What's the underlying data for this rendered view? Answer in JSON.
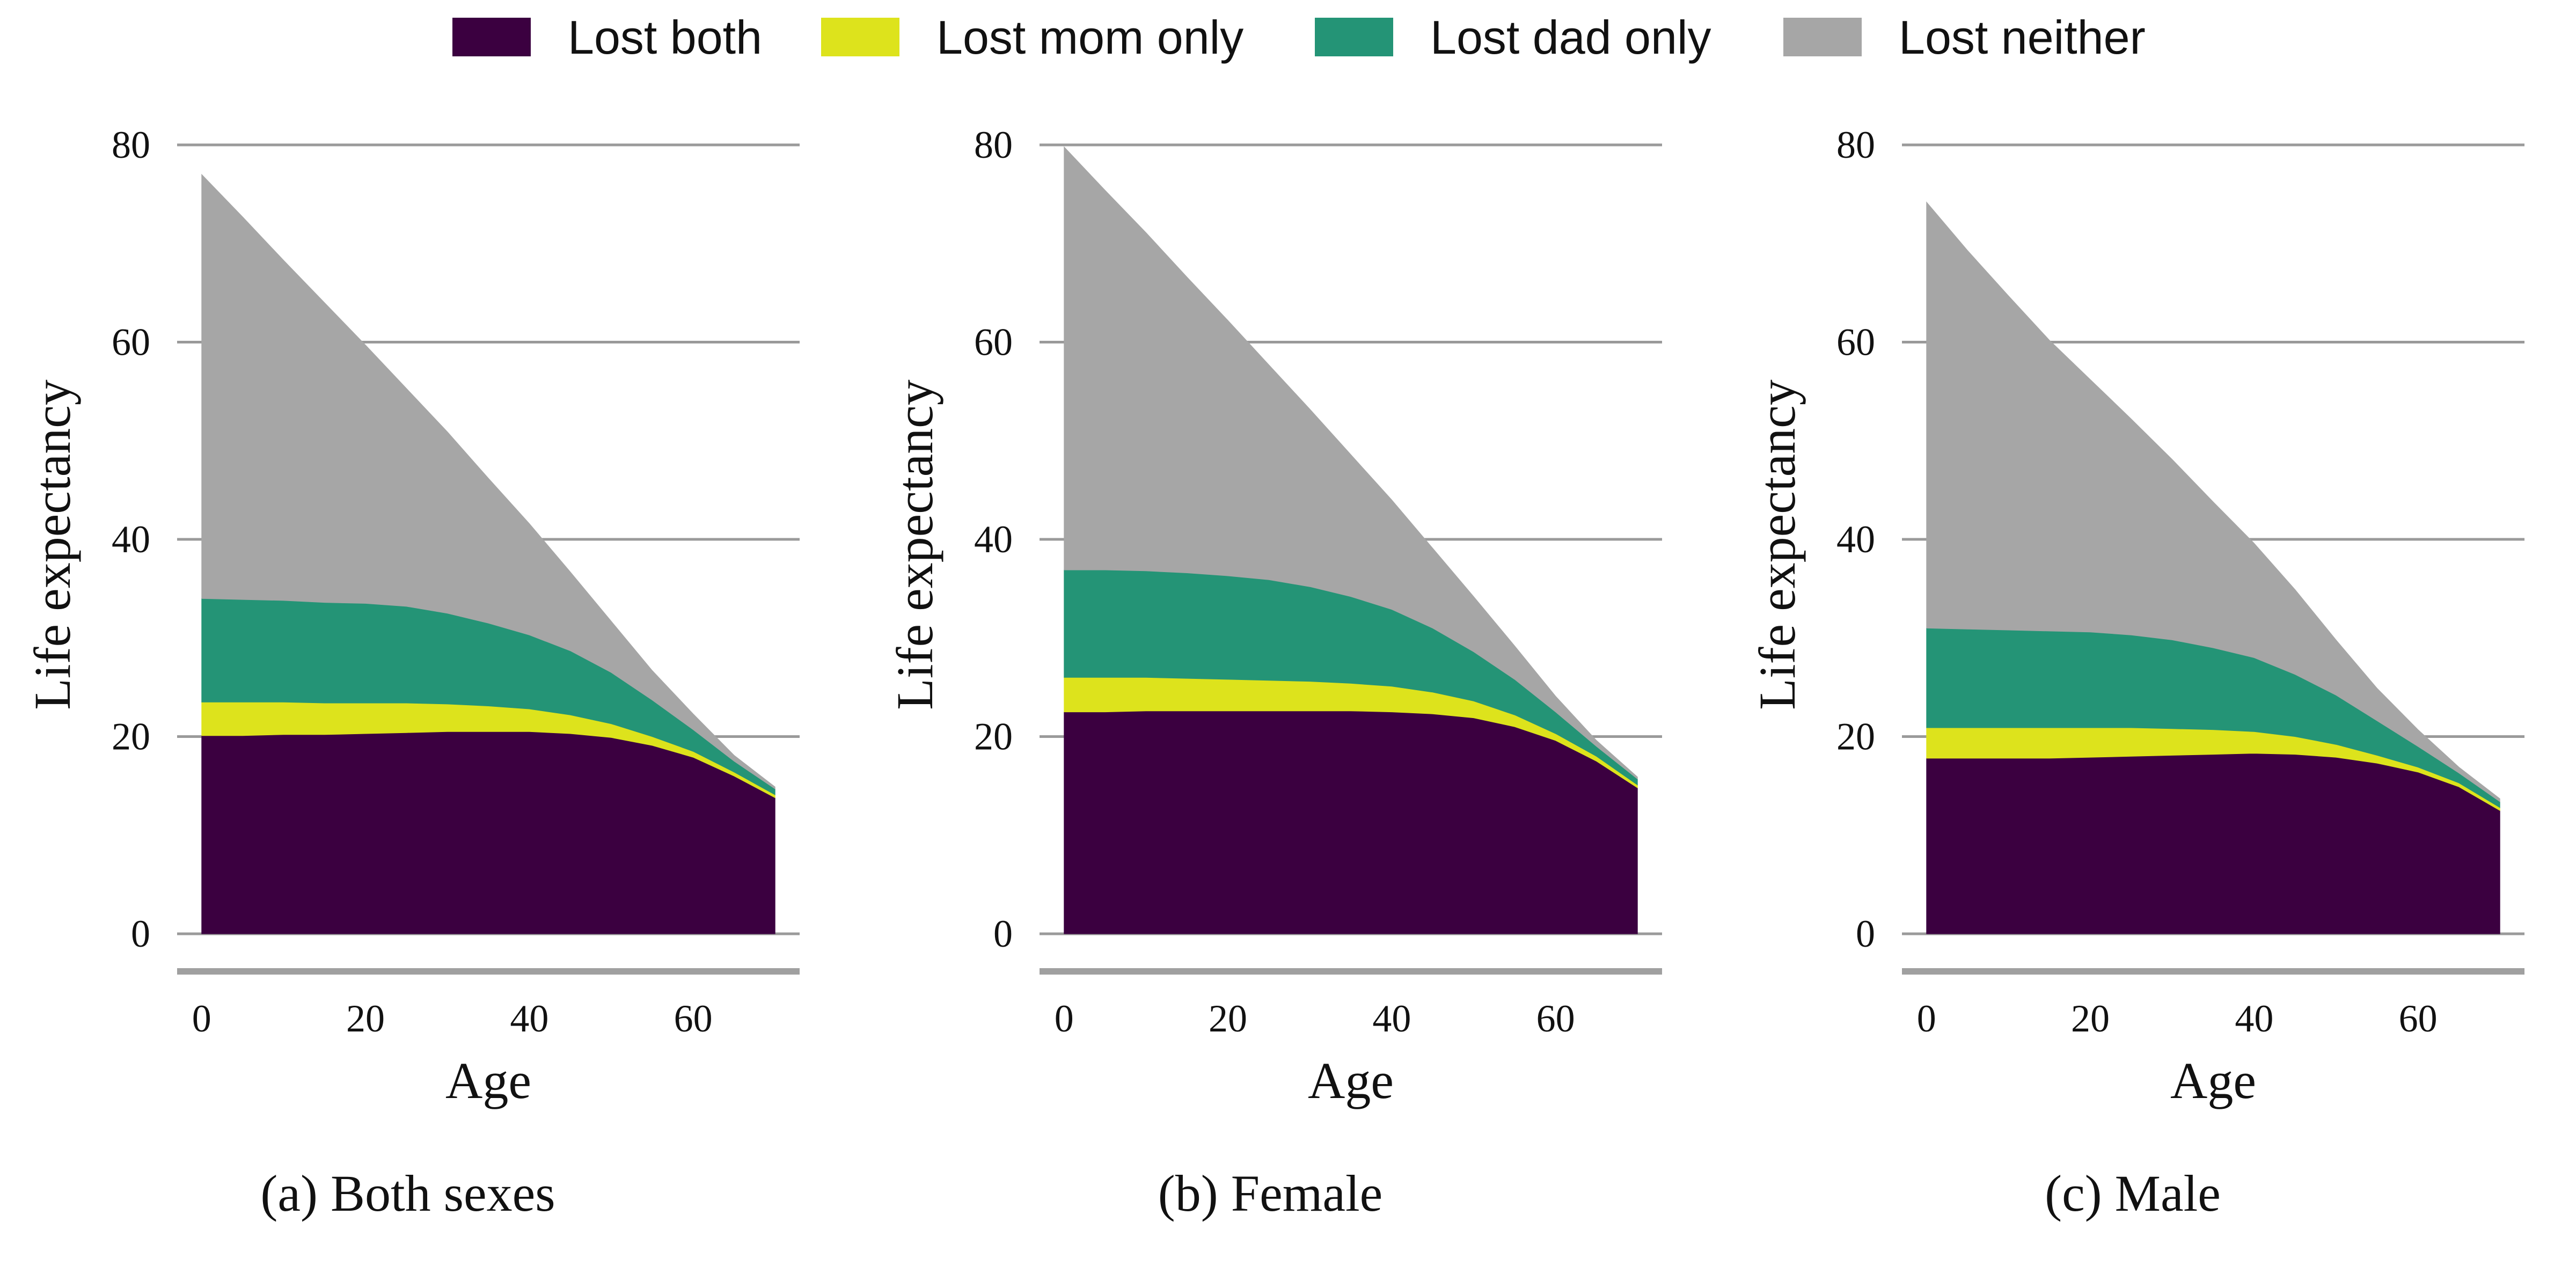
{
  "legend": [
    {
      "label": "Lost both",
      "color": "#3b0040"
    },
    {
      "label": "Lost mom only",
      "color": "#dde31c"
    },
    {
      "label": "Lost dad only",
      "color": "#249476"
    },
    {
      "label": "Lost neither",
      "color": "#a6a6a6"
    }
  ],
  "chart_data": [
    {
      "type": "area",
      "caption": "(a) Both sexes",
      "xlabel": "Age",
      "ylabel": "Life expectancy",
      "xlim": [
        -3,
        73
      ],
      "ylim": [
        0,
        80
      ],
      "xticks": [
        "0",
        "20",
        "40",
        "60"
      ],
      "yticks": [
        "0",
        "20",
        "40",
        "60",
        "80"
      ],
      "grid": true,
      "x": [
        0,
        5,
        10,
        15,
        20,
        25,
        30,
        35,
        40,
        45,
        50,
        55,
        60,
        65,
        70
      ],
      "series": [
        {
          "name": "Lost both",
          "values": [
            20.1,
            20.1,
            20.2,
            20.2,
            20.3,
            20.4,
            20.5,
            20.5,
            20.5,
            20.3,
            19.9,
            19.1,
            17.9,
            16.0,
            13.8
          ]
        },
        {
          "name": "Lost mom only",
          "values": [
            3.4,
            3.4,
            3.3,
            3.2,
            3.1,
            3.0,
            2.8,
            2.6,
            2.3,
            1.9,
            1.4,
            0.9,
            0.6,
            0.4,
            0.3
          ]
        },
        {
          "name": "Lost dad only",
          "values": [
            10.5,
            10.4,
            10.3,
            10.2,
            10.1,
            9.8,
            9.2,
            8.4,
            7.5,
            6.5,
            5.2,
            3.7,
            2.2,
            1.1,
            0.6
          ]
        },
        {
          "name": "Lost neither",
          "values": [
            43.0,
            38.8,
            34.5,
            30.4,
            26.2,
            22.1,
            18.4,
            14.7,
            11.3,
            8.0,
            5.2,
            3.0,
            1.6,
            0.6,
            0.2
          ]
        }
      ]
    },
    {
      "type": "area",
      "caption": "(b) Female",
      "xlabel": "Age",
      "ylabel": "Life expectancy",
      "xlim": [
        -3,
        73
      ],
      "ylim": [
        0,
        80
      ],
      "xticks": [
        "0",
        "20",
        "40",
        "60"
      ],
      "yticks": [
        "0",
        "20",
        "40",
        "60",
        "80"
      ],
      "grid": true,
      "x": [
        0,
        5,
        10,
        15,
        20,
        25,
        30,
        35,
        40,
        45,
        50,
        55,
        60,
        65,
        70
      ],
      "series": [
        {
          "name": "Lost both",
          "values": [
            22.5,
            22.5,
            22.6,
            22.6,
            22.6,
            22.6,
            22.6,
            22.6,
            22.5,
            22.3,
            21.9,
            21.0,
            19.6,
            17.5,
            14.8
          ]
        },
        {
          "name": "Lost mom only",
          "values": [
            3.5,
            3.5,
            3.4,
            3.3,
            3.2,
            3.1,
            3.0,
            2.8,
            2.6,
            2.2,
            1.7,
            1.2,
            0.7,
            0.5,
            0.3
          ]
        },
        {
          "name": "Lost dad only",
          "values": [
            10.9,
            10.9,
            10.8,
            10.7,
            10.5,
            10.2,
            9.6,
            8.8,
            7.8,
            6.5,
            5.0,
            3.6,
            2.2,
            1.0,
            0.6
          ]
        },
        {
          "name": "Lost neither",
          "values": [
            42.9,
            38.5,
            34.3,
            30.0,
            25.9,
            21.8,
            18.0,
            14.4,
            11.1,
            8.1,
            5.6,
            3.4,
            1.6,
            0.6,
            0.2
          ]
        }
      ]
    },
    {
      "type": "area",
      "caption": "(c) Male",
      "xlabel": "Age",
      "ylabel": "Life expectancy",
      "xlim": [
        -3,
        73
      ],
      "ylim": [
        0,
        80
      ],
      "xticks": [
        "0",
        "20",
        "40",
        "60"
      ],
      "yticks": [
        "0",
        "20",
        "40",
        "60",
        "80"
      ],
      "grid": true,
      "x": [
        0,
        5,
        10,
        15,
        20,
        25,
        30,
        35,
        40,
        45,
        50,
        55,
        60,
        65,
        70
      ],
      "series": [
        {
          "name": "Lost both",
          "values": [
            17.8,
            17.8,
            17.8,
            17.8,
            17.9,
            18.0,
            18.1,
            18.2,
            18.3,
            18.2,
            17.9,
            17.3,
            16.4,
            14.9,
            12.5
          ]
        },
        {
          "name": "Lost mom only",
          "values": [
            3.1,
            3.1,
            3.1,
            3.1,
            3.0,
            2.9,
            2.7,
            2.5,
            2.2,
            1.8,
            1.3,
            0.8,
            0.5,
            0.4,
            0.3
          ]
        },
        {
          "name": "Lost dad only",
          "values": [
            10.1,
            10.0,
            9.9,
            9.8,
            9.7,
            9.4,
            9.0,
            8.3,
            7.5,
            6.3,
            5.0,
            3.5,
            2.1,
            1.0,
            0.6
          ]
        },
        {
          "name": "Lost neither",
          "values": [
            43.2,
            38.4,
            33.9,
            29.5,
            25.6,
            21.9,
            18.3,
            14.8,
            11.6,
            8.6,
            5.6,
            3.3,
            1.7,
            0.6,
            0.3
          ]
        }
      ]
    }
  ]
}
